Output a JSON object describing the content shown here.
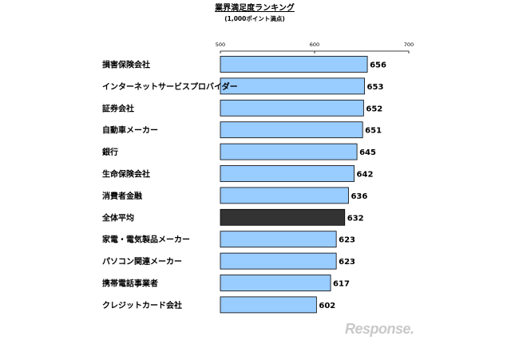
{
  "chart_data": {
    "type": "bar",
    "orientation": "horizontal",
    "title": "業界満足度ランキング",
    "subtitle": "(1,000ポイント満点)",
    "xlim": [
      500,
      700
    ],
    "xticks": [
      500,
      600,
      700
    ],
    "categories": [
      "損害保険会社",
      "インターネットサービスプロバイダー",
      "証券会社",
      "自動車メーカー",
      "銀行",
      "生命保険会社",
      "消費者金融",
      "全体平均",
      "家電・電気製品メーカー",
      "パソコン関連メーカー",
      "携帯電話事業者",
      "クレジットカード会社"
    ],
    "values": [
      656,
      653,
      652,
      651,
      645,
      642,
      636,
      632,
      623,
      623,
      617,
      602
    ],
    "highlight_index": 7,
    "colors": {
      "bar": "#99ccff",
      "highlight": "#333333",
      "stroke": "#000000"
    },
    "gridlines": false,
    "legend": "none"
  },
  "watermark": "Response."
}
